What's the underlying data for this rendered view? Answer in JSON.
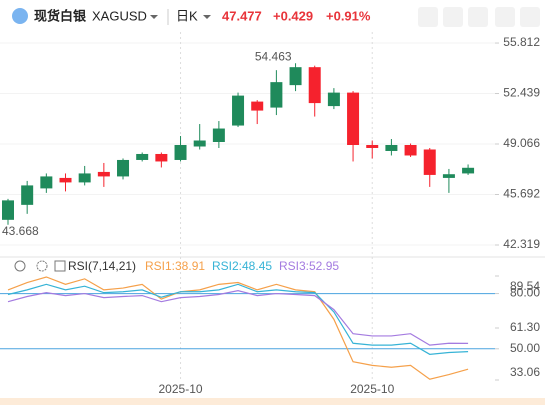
{
  "header": {
    "name": "现货白银",
    "symbol": "XAGUSD",
    "period": "日K",
    "change": "+0.429",
    "change_pct": "+0.91%"
  },
  "chart_data": [
    {
      "type": "candlestick",
      "categories": [
        null,
        null,
        null,
        null,
        null,
        null,
        null,
        null,
        null,
        "2025-10",
        null,
        null,
        null,
        null,
        null,
        null,
        null,
        null,
        null,
        "2025-10",
        null,
        null,
        null,
        null,
        null
      ],
      "open": [
        44.0,
        45.0,
        46.1,
        46.8,
        46.5,
        47.2,
        46.9,
        48.0,
        48.4,
        48.0,
        48.9,
        49.2,
        50.3,
        51.9,
        51.5,
        53.0,
        54.2,
        51.6,
        52.5,
        49.0,
        48.6,
        49.0,
        48.7,
        46.8,
        47.1
      ],
      "high": [
        45.4,
        46.6,
        47.1,
        47.1,
        47.6,
        47.8,
        48.1,
        48.5,
        48.5,
        49.6,
        50.4,
        50.6,
        52.5,
        52.0,
        54.0,
        54.463,
        54.3,
        52.8,
        52.6,
        49.3,
        49.4,
        49.1,
        48.8,
        47.4,
        47.7
      ],
      "low": [
        43.668,
        44.4,
        45.8,
        45.9,
        46.3,
        46.2,
        46.7,
        47.9,
        47.5,
        47.9,
        48.7,
        48.8,
        50.2,
        50.4,
        51.0,
        52.6,
        50.9,
        51.4,
        47.9,
        48.1,
        48.3,
        48.2,
        46.2,
        45.8,
        47.0
      ],
      "close": [
        45.3,
        46.3,
        46.9,
        46.5,
        47.1,
        46.9,
        48.0,
        48.4,
        47.9,
        49.0,
        49.3,
        50.1,
        52.3,
        51.3,
        53.2,
        54.2,
        51.8,
        52.5,
        49.0,
        48.8,
        49.0,
        48.3,
        47.0,
        47.048,
        47.477
      ],
      "up_color": "#1f8a5b",
      "down_color": "#f5222d",
      "ylim": [
        41.65,
        56.55
      ],
      "yticks": [
        55.812,
        52.439,
        49.066,
        45.692,
        42.319
      ]
    },
    {
      "type": "line",
      "indicator": "RSI(7,14,21)",
      "series": [
        {
          "name": "RSI1:38.91",
          "color": "#f5a04a",
          "values": [
            82,
            86,
            89,
            85,
            88,
            82,
            83,
            85,
            77,
            81,
            82,
            85,
            86,
            82,
            85,
            82,
            81,
            66,
            43,
            41,
            40,
            41,
            33.5,
            36,
            38.91
          ]
        },
        {
          "name": "RSI2:48.45",
          "color": "#36b3d6",
          "values": [
            79.5,
            82,
            85,
            82,
            84,
            80.5,
            81,
            82,
            78,
            81,
            81,
            82,
            85,
            81,
            82,
            81,
            80.5,
            70,
            53,
            52,
            52,
            53,
            47,
            48,
            48.45
          ]
        },
        {
          "name": "RSI3:52.95",
          "color": "#a47be0",
          "values": [
            75.6,
            78.4,
            80.5,
            78.9,
            80,
            77.8,
            78.4,
            78.9,
            75.6,
            77.8,
            78.4,
            79.5,
            81.6,
            78.9,
            80,
            79.5,
            78.9,
            71.3,
            58.2,
            57,
            57,
            58.2,
            52,
            53,
            52.95
          ]
        }
      ],
      "ylim": [
        33.06,
        89.54
      ],
      "yticks": [
        89.54,
        {
          "value": 80,
          "label": "80.00"
        },
        {
          "value": 61.3,
          "label": "61.30"
        },
        {
          "value": 50,
          "label": "50.00"
        },
        33.06
      ],
      "hlines": [
        80,
        50
      ],
      "hline_color": "#4aa3df"
    }
  ]
}
